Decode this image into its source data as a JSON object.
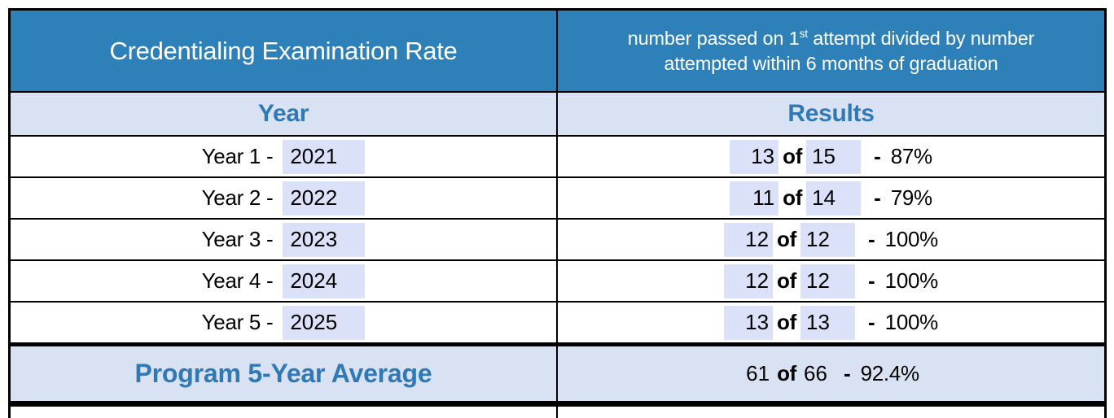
{
  "table": {
    "title": "Credentialing Examination Rate",
    "subtitle": {
      "line1_pre": "number passed on 1",
      "line1_sup": "st",
      "line1_post": " attempt divided by number",
      "line2": "attempted within 6 months of graduation"
    },
    "columns": {
      "year": "Year",
      "results": "Results"
    },
    "of_label": "of",
    "dash": "-",
    "rows": [
      {
        "label": "Year 1 -",
        "year": "2021",
        "passed": "13",
        "attempted": "15",
        "rate": "87%"
      },
      {
        "label": "Year 2 -",
        "year": "2022",
        "passed": "11",
        "attempted": "14",
        "rate": "79%"
      },
      {
        "label": "Year 3 -",
        "year": "2023",
        "passed": "12",
        "attempted": "12",
        "rate": "100%"
      },
      {
        "label": "Year 4 -",
        "year": "2024",
        "passed": "12",
        "attempted": "12",
        "rate": "100%"
      },
      {
        "label": "Year 5 -",
        "year": "2025",
        "passed": "13",
        "attempted": "13",
        "rate": "100%"
      }
    ],
    "footer": {
      "label": "Program 5-Year Average",
      "passed": "61",
      "attempted": "66",
      "rate": "92.4%"
    }
  },
  "colors": {
    "header_bg": "#2E80B9",
    "header_text": "#FFFFFF",
    "subheader_bg": "#D9E2F3",
    "accent_text": "#2E79B6",
    "field_bg": "#DBE1F8",
    "body_text": "#000000",
    "border": "#000000"
  }
}
